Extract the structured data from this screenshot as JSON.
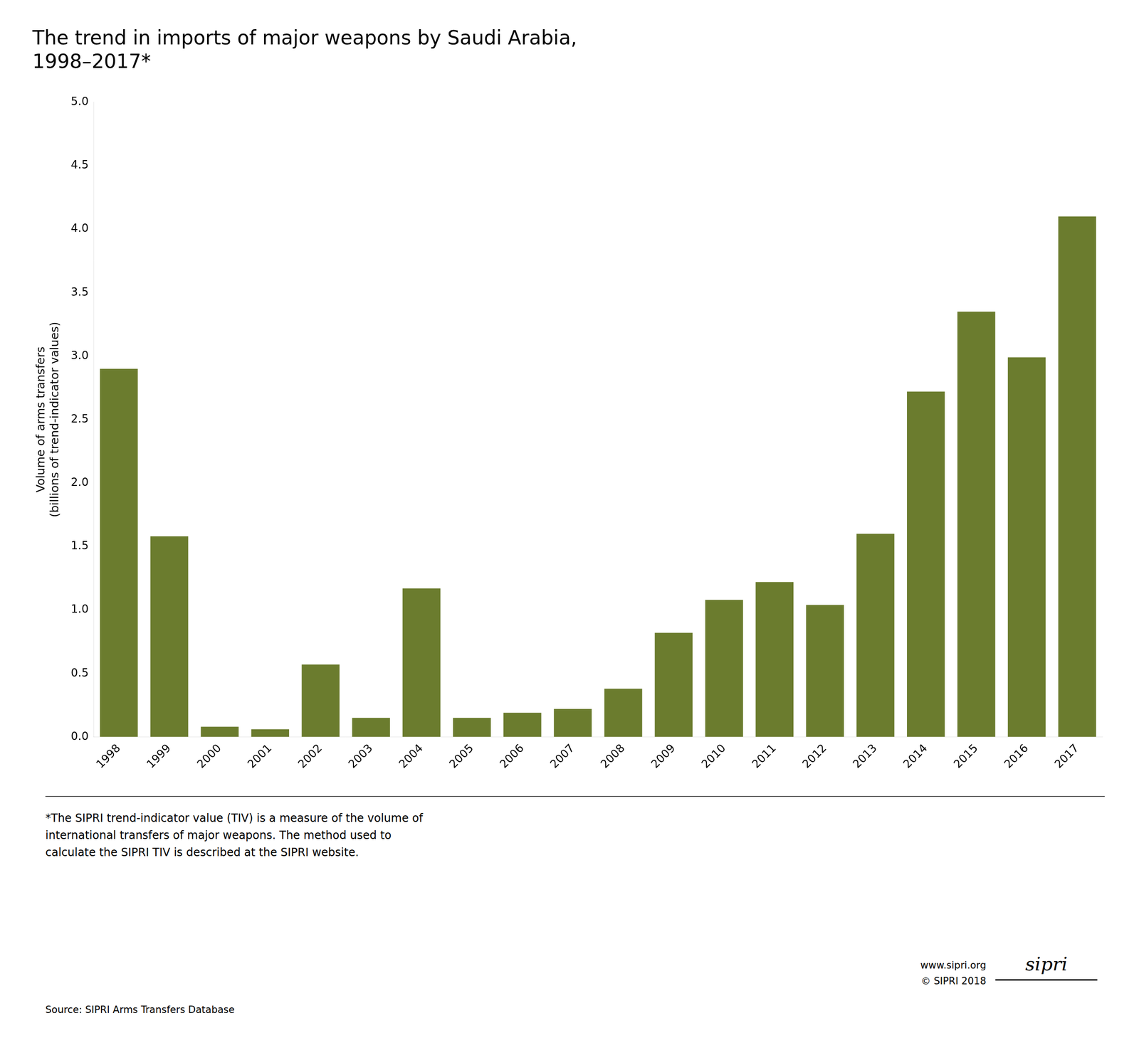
{
  "chart_data": {
    "type": "bar",
    "title": [
      "The trend in imports of major weapons by Saudi Arabia,",
      "1998–2017*"
    ],
    "ylabel": [
      "Volume of arms transfers",
      "(billions of trend-indicator values)"
    ],
    "categories": [
      "1998",
      "1999",
      "2000",
      "2001",
      "2002",
      "2003",
      "2004",
      "2005",
      "2006",
      "2007",
      "2008",
      "2009",
      "2010",
      "2011",
      "2012",
      "2013",
      "2014",
      "2015",
      "2016",
      "2017"
    ],
    "values": [
      2.9,
      1.58,
      0.08,
      0.06,
      0.57,
      0.15,
      1.17,
      0.15,
      0.19,
      0.22,
      0.38,
      0.82,
      1.08,
      1.22,
      1.04,
      1.6,
      2.72,
      3.35,
      2.99,
      4.1
    ],
    "color": "#6b7c2e",
    "ylim": [
      0,
      5.0
    ],
    "yticks": [
      {
        "value": 0,
        "label": "0.0"
      },
      0.5,
      {
        "value": 1,
        "label": "1.0"
      },
      1.5,
      {
        "value": 2,
        "label": "2.0"
      },
      2.5,
      {
        "value": 3,
        "label": "3.0"
      },
      3.5,
      {
        "value": 4,
        "label": "4.0"
      },
      4.5,
      {
        "value": 5,
        "label": "5.0"
      }
    ],
    "grid": false,
    "annotations": [
      "*The SIPRI trend-indicator value (TIV) is a measure of the volume of",
      "international transfers of major weapons. The method used to",
      "calculate the SIPRI TIV is described at the SIPRI website.",
      "Source: SIPRI Arms Transfers Database",
      "www.sipri.org",
      "© SIPRI 2018",
      "sipri"
    ]
  }
}
